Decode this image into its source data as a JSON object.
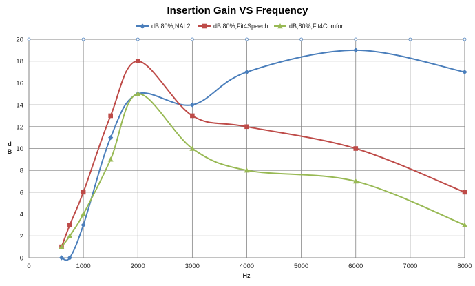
{
  "chart_data": {
    "type": "line",
    "title": "Insertion Gain VS Frequency",
    "xlabel": "Hz",
    "ylabel": "dB",
    "xlim": [
      0,
      8000
    ],
    "ylim": [
      0,
      20
    ],
    "xticks": [
      0,
      1000,
      2000,
      3000,
      4000,
      5000,
      6000,
      7000,
      8000
    ],
    "yticks": [
      0,
      2,
      4,
      6,
      8,
      10,
      12,
      14,
      16,
      18,
      20
    ],
    "grid": true,
    "smooth": true,
    "legend": "top",
    "series": [
      {
        "name": "dB,80%,NAL2",
        "color": "#4a7ebb",
        "marker": "diamond",
        "x": [
          600,
          750,
          1000,
          1500,
          2000,
          3000,
          4000,
          6000,
          8000
        ],
        "y": [
          0,
          0,
          3,
          11,
          15,
          14,
          17,
          19,
          17
        ]
      },
      {
        "name": "dB,80%,Fit4Speech",
        "color": "#be4b48",
        "marker": "square",
        "x": [
          600,
          750,
          1000,
          1500,
          2000,
          3000,
          4000,
          6000,
          8000
        ],
        "y": [
          1,
          3,
          6,
          13,
          18,
          13,
          12,
          10,
          6
        ]
      },
      {
        "name": "dB,80%,Fit4Comfort",
        "color": "#98b954",
        "marker": "triangle",
        "x": [
          600,
          750,
          1000,
          1500,
          2000,
          3000,
          4000,
          6000,
          8000
        ],
        "y": [
          1,
          2,
          4,
          9,
          15,
          10,
          8,
          7,
          3
        ]
      }
    ]
  }
}
